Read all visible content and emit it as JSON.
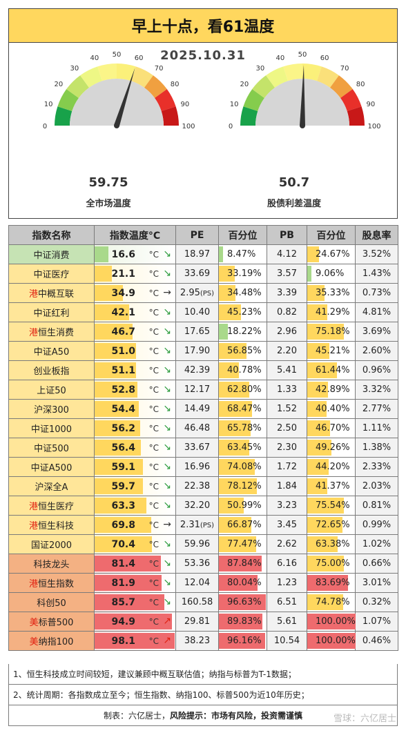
{
  "title": "早上十点，看61温度",
  "date": "2025.10.31",
  "gauges": [
    {
      "value": "59.75",
      "num": 59.75,
      "label": "全市场温度"
    },
    {
      "value": "50.7",
      "num": 50.7,
      "label": "股债利差温度"
    }
  ],
  "gauge_ticks": [
    "0",
    "10",
    "20",
    "30",
    "40",
    "50",
    "60",
    "70",
    "80",
    "90",
    "100"
  ],
  "headers": [
    "指数名称",
    "指数温度°C",
    "PE",
    "百分位",
    "PB",
    "百分位",
    "股息率"
  ],
  "unit": "°C",
  "rows": [
    {
      "prefix": "",
      "name": "中证消费",
      "temp": "16.6",
      "arrow": "↘",
      "pe": "18.97",
      "pe_ps": "",
      "pe_pct": "8.47%",
      "pb": "4.12",
      "pb_pct": "24.67%",
      "div": "3.52%",
      "name_bg": "#c6e3b4",
      "pe_bar": "#a9d98b",
      "pb_bar": "#ffd75e"
    },
    {
      "prefix": "",
      "name": "中证医疗",
      "temp": "21.1",
      "arrow": "↘",
      "pe": "33.69",
      "pe_ps": "",
      "pe_pct": "33.19%",
      "pb": "3.57",
      "pb_pct": "9.06%",
      "div": "1.43%",
      "name_bg": "#ffe699",
      "pe_bar": "#ffd75e",
      "pb_bar": "#a9d98b"
    },
    {
      "prefix": "港",
      "name": "中概互联",
      "temp": "34.9",
      "arrow": "→",
      "pe": "2.95",
      "pe_ps": "(PS)",
      "pe_pct": "34.48%",
      "pb": "3.39",
      "pb_pct": "35.33%",
      "div": "0.73%",
      "name_bg": "#ffe699",
      "pe_bar": "#ffd75e",
      "pb_bar": "#ffd75e"
    },
    {
      "prefix": "",
      "name": "中证红利",
      "temp": "42.1",
      "arrow": "↘",
      "pe": "10.40",
      "pe_ps": "",
      "pe_pct": "45.23%",
      "pb": "0.82",
      "pb_pct": "41.29%",
      "div": "4.81%",
      "name_bg": "#ffe699",
      "pe_bar": "#ffd75e",
      "pb_bar": "#ffd75e"
    },
    {
      "prefix": "港",
      "name": "恒生消费",
      "temp": "46.7",
      "arrow": "↘",
      "pe": "17.65",
      "pe_ps": "",
      "pe_pct": "18.22%",
      "pb": "2.96",
      "pb_pct": "75.18%",
      "div": "3.69%",
      "name_bg": "#ffe699",
      "pe_bar": "#a9d98b",
      "pb_bar": "#ffd75e"
    },
    {
      "prefix": "",
      "name": "中证A50",
      "temp": "51.0",
      "arrow": "↘",
      "pe": "17.90",
      "pe_ps": "",
      "pe_pct": "56.85%",
      "pb": "2.20",
      "pb_pct": "45.21%",
      "div": "2.60%",
      "name_bg": "#ffe699",
      "pe_bar": "#ffd75e",
      "pb_bar": "#ffd75e"
    },
    {
      "prefix": "",
      "name": "创业板指",
      "temp": "51.1",
      "arrow": "↘",
      "pe": "42.39",
      "pe_ps": "",
      "pe_pct": "40.78%",
      "pb": "5.41",
      "pb_pct": "61.44%",
      "div": "0.96%",
      "name_bg": "#ffe699",
      "pe_bar": "#ffd75e",
      "pb_bar": "#ffd75e"
    },
    {
      "prefix": "",
      "name": "上证50",
      "temp": "52.8",
      "arrow": "↘",
      "pe": "12.17",
      "pe_ps": "",
      "pe_pct": "62.80%",
      "pb": "1.33",
      "pb_pct": "42.89%",
      "div": "3.32%",
      "name_bg": "#ffe699",
      "pe_bar": "#ffd75e",
      "pb_bar": "#ffd75e"
    },
    {
      "prefix": "",
      "name": "沪深300",
      "temp": "54.4",
      "arrow": "↘",
      "pe": "14.49",
      "pe_ps": "",
      "pe_pct": "68.47%",
      "pb": "1.52",
      "pb_pct": "40.40%",
      "div": "2.77%",
      "name_bg": "#ffe699",
      "pe_bar": "#ffd75e",
      "pb_bar": "#ffd75e"
    },
    {
      "prefix": "",
      "name": "中证1000",
      "temp": "56.2",
      "arrow": "↘",
      "pe": "46.48",
      "pe_ps": "",
      "pe_pct": "65.78%",
      "pb": "2.50",
      "pb_pct": "46.70%",
      "div": "1.11%",
      "name_bg": "#ffe699",
      "pe_bar": "#ffd75e",
      "pb_bar": "#ffd75e"
    },
    {
      "prefix": "",
      "name": "中证500",
      "temp": "56.4",
      "arrow": "↘",
      "pe": "33.67",
      "pe_ps": "",
      "pe_pct": "63.45%",
      "pb": "2.30",
      "pb_pct": "49.26%",
      "div": "1.38%",
      "name_bg": "#ffe699",
      "pe_bar": "#ffd75e",
      "pb_bar": "#ffd75e"
    },
    {
      "prefix": "",
      "name": "中证A500",
      "temp": "59.1",
      "arrow": "↘",
      "pe": "16.96",
      "pe_ps": "",
      "pe_pct": "74.08%",
      "pb": "1.72",
      "pb_pct": "44.20%",
      "div": "2.33%",
      "name_bg": "#ffe699",
      "pe_bar": "#ffd75e",
      "pb_bar": "#ffd75e"
    },
    {
      "prefix": "",
      "name": "沪深全A",
      "temp": "59.7",
      "arrow": "↘",
      "pe": "22.38",
      "pe_ps": "",
      "pe_pct": "78.12%",
      "pb": "1.84",
      "pb_pct": "41.37%",
      "div": "2.03%",
      "name_bg": "#ffe699",
      "pe_bar": "#ffd75e",
      "pb_bar": "#ffd75e"
    },
    {
      "prefix": "港",
      "name": "恒生医疗",
      "temp": "63.3",
      "arrow": "↘",
      "pe": "32.20",
      "pe_ps": "",
      "pe_pct": "50.99%",
      "pb": "3.23",
      "pb_pct": "75.54%",
      "div": "0.81%",
      "name_bg": "#ffe699",
      "pe_bar": "#ffd75e",
      "pb_bar": "#ffd75e"
    },
    {
      "prefix": "港",
      "name": "恒生科技",
      "temp": "69.8",
      "arrow": "→",
      "pe": "2.31",
      "pe_ps": "(PS)",
      "pe_pct": "66.87%",
      "pb": "3.45",
      "pb_pct": "72.65%",
      "div": "0.99%",
      "name_bg": "#ffe699",
      "pe_bar": "#ffd75e",
      "pb_bar": "#ffd75e"
    },
    {
      "prefix": "",
      "name": "国证2000",
      "temp": "70.4",
      "arrow": "↘",
      "pe": "59.96",
      "pe_ps": "",
      "pe_pct": "77.47%",
      "pb": "2.62",
      "pb_pct": "63.38%",
      "div": "1.02%",
      "name_bg": "#ffe699",
      "pe_bar": "#ffd75e",
      "pb_bar": "#ffd75e"
    },
    {
      "prefix": "",
      "name": "科技龙头",
      "temp": "81.4",
      "arrow": "↘",
      "pe": "53.36",
      "pe_ps": "",
      "pe_pct": "87.84%",
      "pb": "6.16",
      "pb_pct": "75.00%",
      "div": "0.66%",
      "name_bg": "#f4b183",
      "pe_bar": "#ee6b6e",
      "pb_bar": "#ffd75e"
    },
    {
      "prefix": "港",
      "name": "恒生指数",
      "temp": "81.9",
      "arrow": "↘",
      "pe": "12.04",
      "pe_ps": "",
      "pe_pct": "80.04%",
      "pb": "1.23",
      "pb_pct": "83.69%",
      "div": "3.01%",
      "name_bg": "#f4b183",
      "pe_bar": "#ee6b6e",
      "pb_bar": "#ee6b6e"
    },
    {
      "prefix": "",
      "name": "科创50",
      "temp": "85.7",
      "arrow": "↘",
      "pe": "160.58",
      "pe_ps": "",
      "pe_pct": "96.63%",
      "pb": "6.51",
      "pb_pct": "74.78%",
      "div": "0.32%",
      "name_bg": "#f4b183",
      "pe_bar": "#ee6b6e",
      "pb_bar": "#ffd75e"
    },
    {
      "prefix": "美",
      "name": "标普500",
      "temp": "94.9",
      "arrow": "↗",
      "pe": "29.81",
      "pe_ps": "",
      "pe_pct": "89.83%",
      "pb": "5.61",
      "pb_pct": "100.00%",
      "div": "1.07%",
      "name_bg": "#f4b183",
      "pe_bar": "#ee6b6e",
      "pb_bar": "#ee6b6e"
    },
    {
      "prefix": "美",
      "name": "纳指100",
      "temp": "98.1",
      "arrow": "↗",
      "pe": "38.23",
      "pe_ps": "",
      "pe_pct": "96.16%",
      "pb": "10.54",
      "pb_pct": "100.00%",
      "div": "0.46%",
      "name_bg": "#f4b183",
      "pe_bar": "#ee6b6e",
      "pb_bar": "#ee6b6e"
    }
  ],
  "notes": [
    "1、恒生科技成立时间较短，建议兼顾中概互联估值；纳指与标普为T-1数据；",
    "2、统计周期：各指数成立至今；恒生指数、纳指100、标普500为近10年历史；"
  ],
  "footer_maker": "制表：六亿居士，",
  "footer_risk_label": "风险提示：",
  "footer_risk_text": "市场有风险，投资需谨慎",
  "watermark": "雪球：六亿居士",
  "colors": {
    "title_bg": "#ffd75e",
    "header_bg": "#c8c8c8",
    "green": "#a9d98b",
    "yellow": "#ffd75e",
    "red": "#ee6b6e",
    "hk_prefix": "#e02010",
    "down_arrow": "#2a9a3a",
    "up_arrow": "#e02010"
  }
}
